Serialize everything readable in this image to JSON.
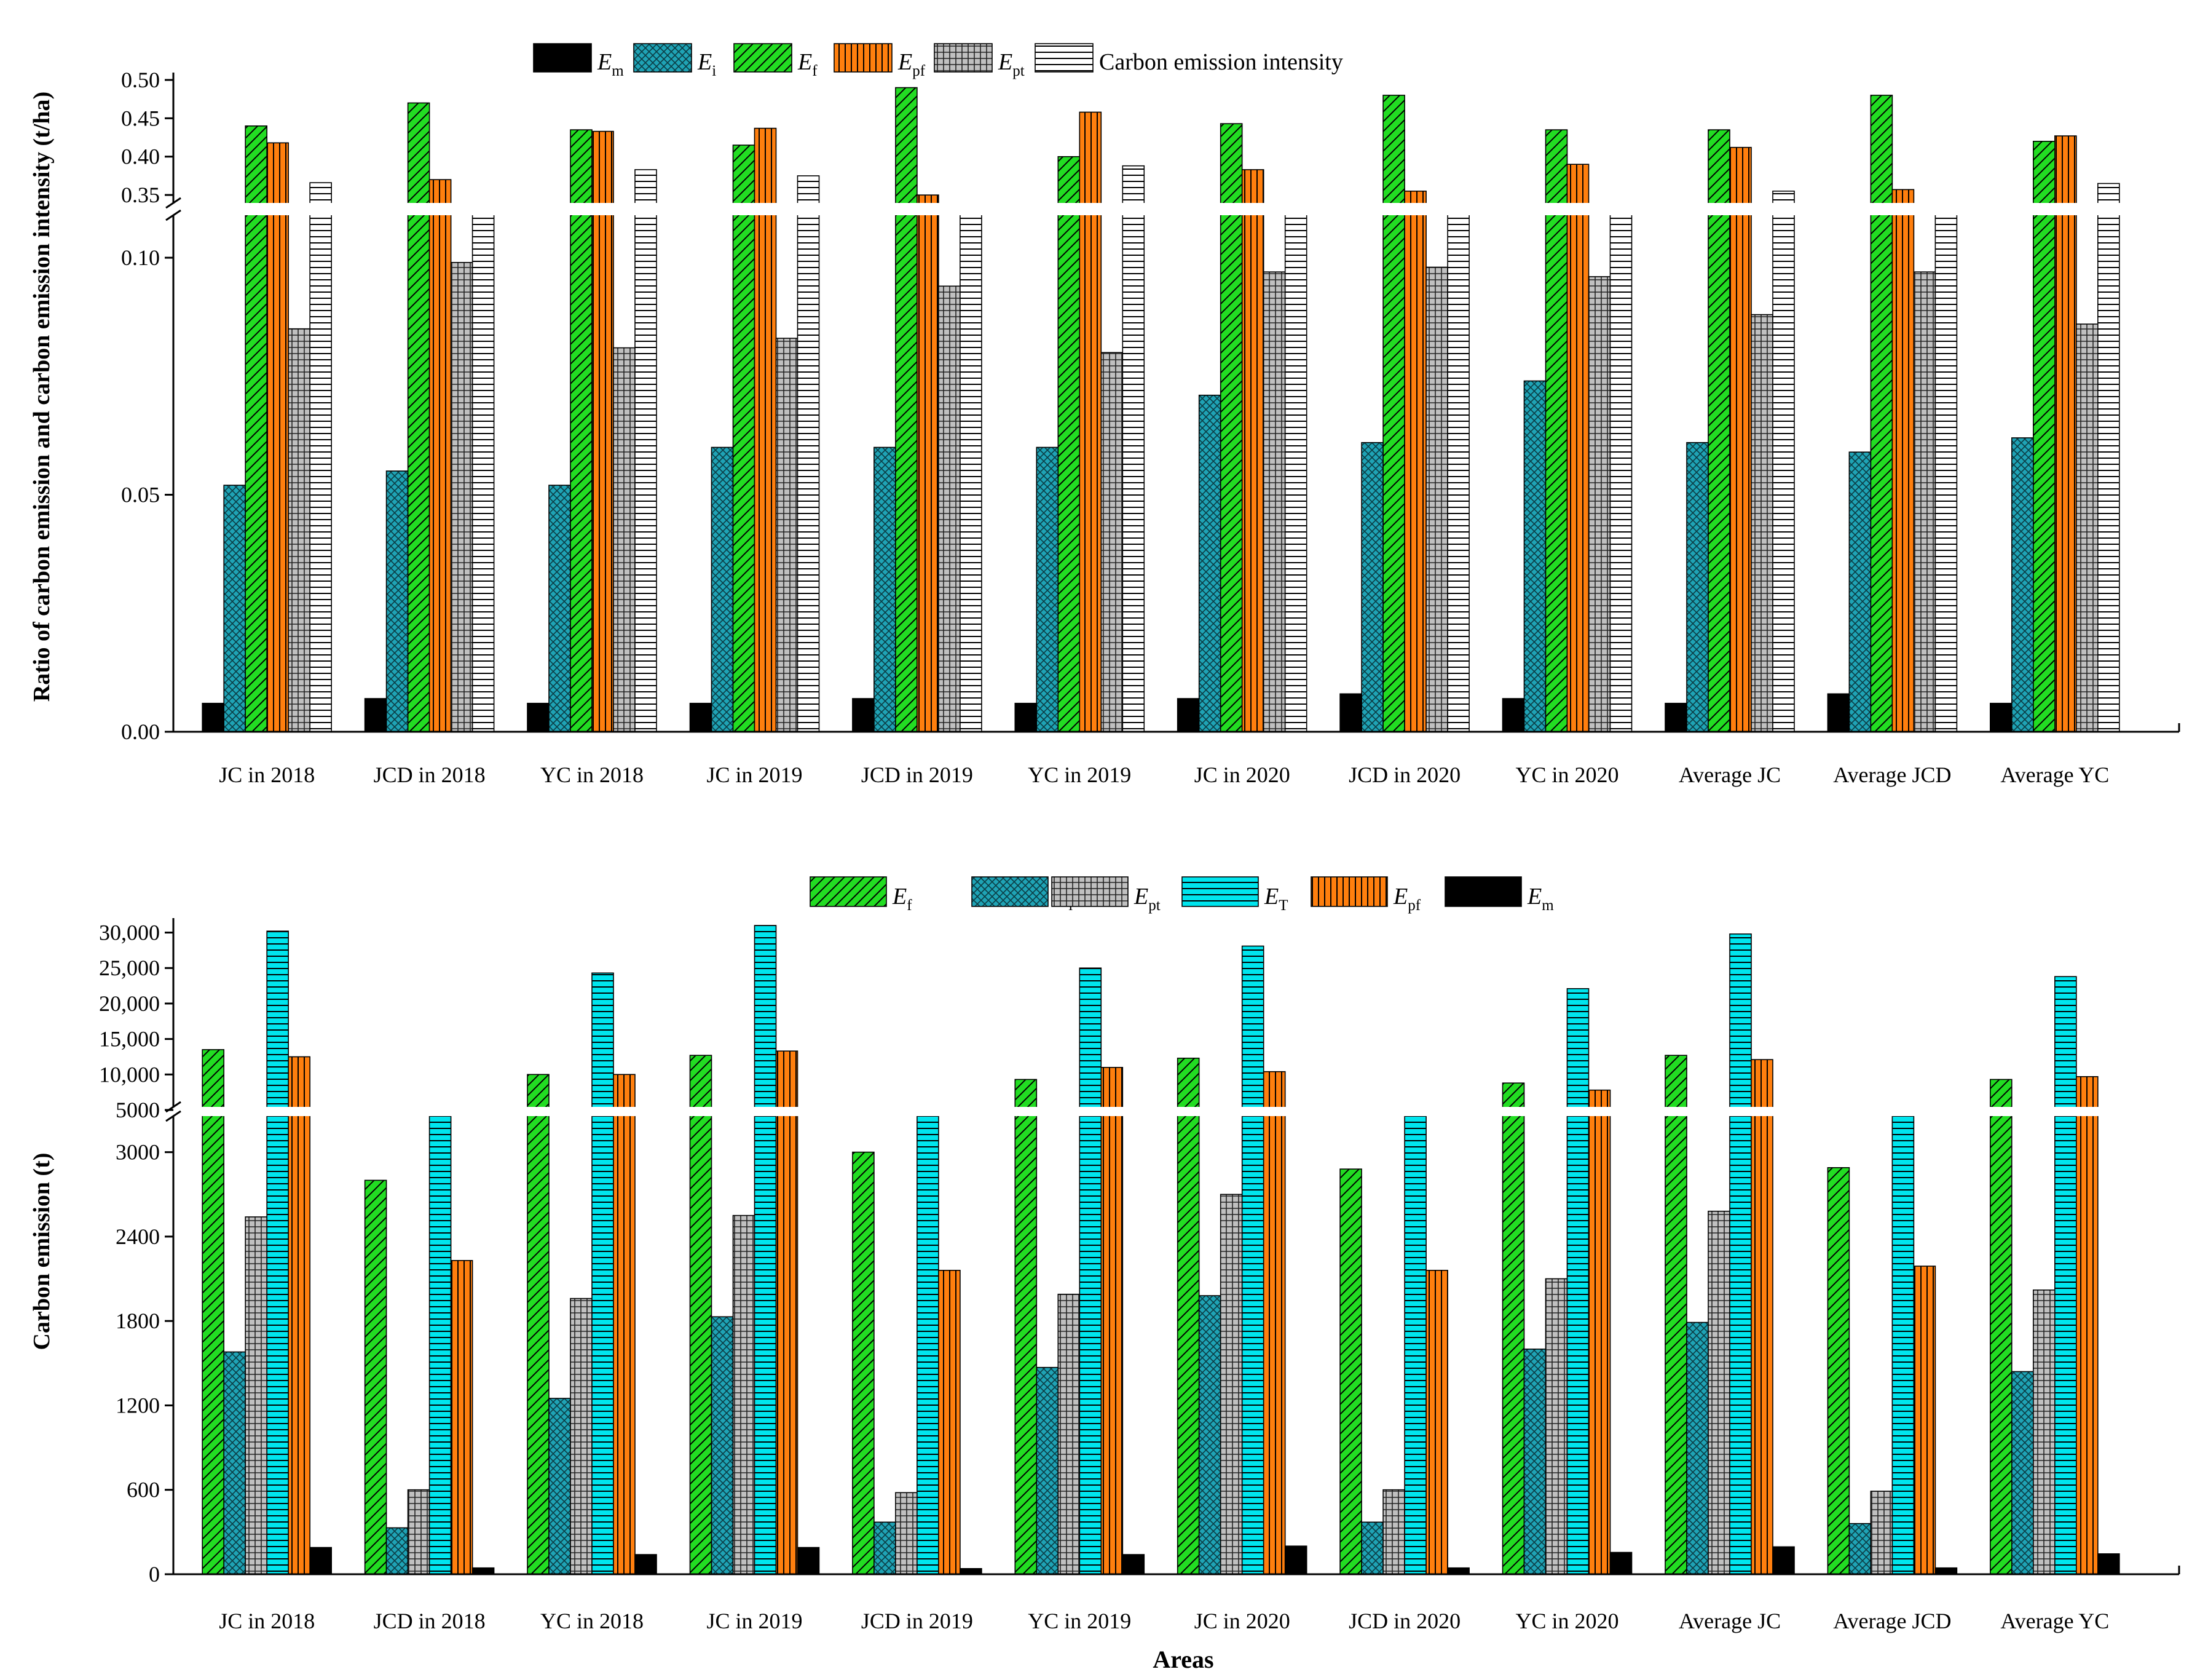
{
  "chart_data": [
    {
      "type": "bar",
      "ylabel": "Ratio of carbon emission and carbon emission intensity (t/ha)",
      "xlabel": "",
      "y_break": [
        0.11,
        0.33
      ],
      "ylim_lower": [
        0,
        0.11
      ],
      "ylim_upper": [
        0.33,
        0.5
      ],
      "y_ticks": [
        0,
        0.05,
        0.1,
        0.35,
        0.4,
        0.45,
        0.5
      ],
      "y_tick_labels": [
        "0.00",
        "0.05",
        "0.10",
        "0.35",
        "0.40",
        "0.45",
        "0.50"
      ],
      "categories": [
        "JC in 2018",
        "JCD in 2018",
        "YC in 2018",
        "JC in 2019",
        "JCD in 2019",
        "YC in 2019",
        "JC in 2020",
        "JCD in 2020",
        "YC in 2020",
        "Average JC",
        "Average JCD",
        "Average  YC"
      ],
      "legend": [
        {
          "label": "E",
          "sub": "m"
        },
        {
          "label": "E",
          "sub": "i"
        },
        {
          "label": "E",
          "sub": "f"
        },
        {
          "label": "E",
          "sub": "pf"
        },
        {
          "label": "E",
          "sub": "pt"
        },
        {
          "label": "Carbon emission intensity",
          "sub": ""
        }
      ],
      "series": [
        {
          "name": "Em",
          "color": "#000000",
          "pattern": "solid",
          "values": [
            0.006,
            0.007,
            0.006,
            0.006,
            0.007,
            0.006,
            0.007,
            0.008,
            0.007,
            0.006,
            0.008,
            0.006
          ]
        },
        {
          "name": "Ei",
          "color": "#1fa3b5",
          "pattern": "cross",
          "values": [
            0.052,
            0.055,
            0.052,
            0.06,
            0.06,
            0.06,
            0.071,
            0.061,
            0.074,
            0.061,
            0.059,
            0.062
          ]
        },
        {
          "name": "Ef",
          "color": "#22dd22",
          "pattern": "diag",
          "values": [
            0.44,
            0.47,
            0.435,
            0.415,
            0.49,
            0.4,
            0.443,
            0.48,
            0.435,
            0.435,
            0.48,
            0.42
          ]
        },
        {
          "name": "Epf",
          "color": "#ff7f0e",
          "pattern": "vert",
          "values": [
            0.418,
            0.37,
            0.433,
            0.437,
            0.35,
            0.458,
            0.383,
            0.355,
            0.39,
            0.412,
            0.357,
            0.427
          ]
        },
        {
          "name": "Ept",
          "color": "#c0c0c0",
          "pattern": "grid",
          "values": [
            0.085,
            0.099,
            0.081,
            0.083,
            0.094,
            0.08,
            0.097,
            0.098,
            0.096,
            0.088,
            0.097,
            0.086
          ]
        },
        {
          "name": "Carbon emission intensity",
          "color": "#ffffff",
          "pattern": "horiz",
          "values": [
            0.366,
            0.324,
            0.383,
            0.375,
            0.328,
            0.388,
            0.324,
            0.323,
            0.324,
            0.355,
            0.324,
            0.365
          ]
        }
      ]
    },
    {
      "type": "bar",
      "ylabel": "Carbon emission (t)",
      "xlabel": "Areas",
      "y_break": [
        3300,
        5000
      ],
      "ylim_lower": [
        0,
        3300
      ],
      "ylim_upper": [
        5000,
        31000
      ],
      "y_ticks": [
        0,
        600,
        1200,
        1800,
        2400,
        3000,
        5000,
        10000,
        15000,
        20000,
        25000,
        30000
      ],
      "y_tick_labels": [
        "0",
        "600",
        "1200",
        "1800",
        "2400",
        "3000",
        "5000",
        "10,000",
        "15,000",
        "20,000",
        "25,000",
        "30,000"
      ],
      "categories": [
        "JC in 2018",
        "JCD in 2018",
        "YC in 2018",
        "JC in 2019",
        "JCD in 2019",
        "YC in 2019",
        "JC in 2020",
        "JCD in 2020",
        "YC in 2020",
        "Average JC",
        "Average JCD",
        "Average  YC"
      ],
      "legend": [
        {
          "label": "E",
          "sub": "f"
        },
        {
          "label": "E",
          "sub": "i"
        },
        {
          "label": "E",
          "sub": "pt"
        },
        {
          "label": "E",
          "sub": "T"
        },
        {
          "label": "E",
          "sub": "pf"
        },
        {
          "label": "E",
          "sub": "m"
        }
      ],
      "series": [
        {
          "name": "Ef",
          "color": "#22dd22",
          "pattern": "diag",
          "values": [
            13500,
            2800,
            10000,
            12700,
            3000,
            9300,
            12300,
            2880,
            8800,
            12700,
            2890,
            9300
          ]
        },
        {
          "name": "Ei",
          "color": "#1fa3b5",
          "pattern": "cross",
          "values": [
            1580,
            330,
            1250,
            1830,
            370,
            1470,
            1980,
            370,
            1600,
            1790,
            360,
            1440
          ]
        },
        {
          "name": "Ept",
          "color": "#c0c0c0",
          "pattern": "grid",
          "values": [
            2540,
            600,
            1960,
            2550,
            580,
            1990,
            2700,
            600,
            2100,
            2580,
            590,
            2020
          ]
        },
        {
          "name": "ET",
          "color": "#00e5ee",
          "pattern": "horiz",
          "values": [
            30200,
            5050,
            24300,
            31000,
            5100,
            25000,
            28100,
            5050,
            22100,
            29800,
            5050,
            23800
          ]
        },
        {
          "name": "Epf",
          "color": "#ff7f0e",
          "pattern": "vert",
          "values": [
            12500,
            2230,
            10000,
            13300,
            2160,
            11000,
            10400,
            2160,
            7800,
            12100,
            2190,
            9700
          ]
        },
        {
          "name": "Em",
          "color": "#000000",
          "pattern": "solid",
          "values": [
            190,
            45,
            140,
            190,
            40,
            140,
            200,
            45,
            155,
            195,
            45,
            145
          ]
        }
      ]
    }
  ]
}
